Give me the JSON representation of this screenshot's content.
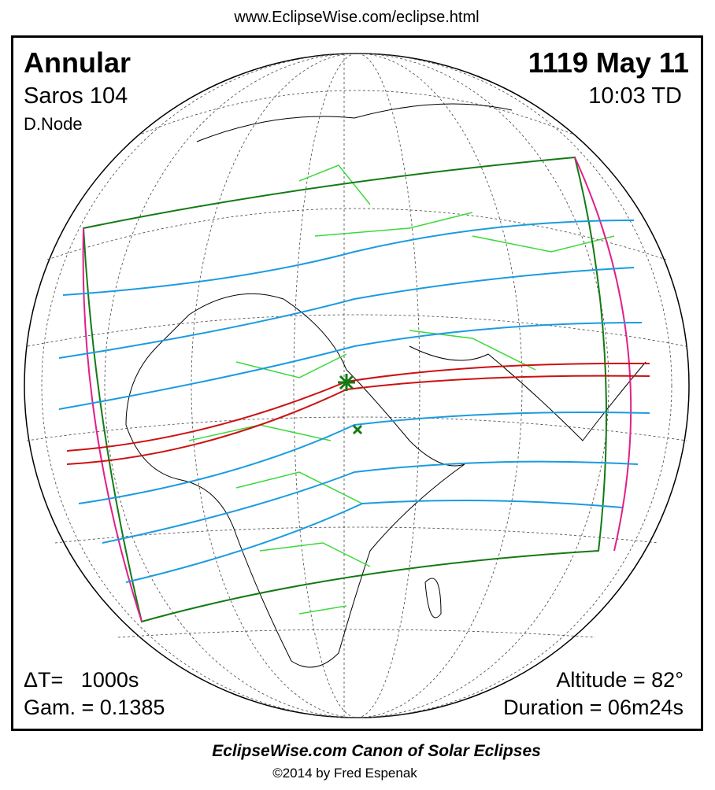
{
  "header": {
    "url": "www.EclipseWise.com/eclipse.html"
  },
  "panel": {
    "eclipse_type": "Annular",
    "saros": "Saros 104",
    "node": "D.Node",
    "date": "1119 May 11",
    "time": "10:03 TD",
    "delta_t": "ΔT=   1000s",
    "gamma": "Gam. = 0.1385",
    "altitude": "Altitude = 82°",
    "duration": "Duration = 06m24s"
  },
  "footer": {
    "title": "EclipseWise.com Canon of Solar Eclipses",
    "credit": "©2014 by Fred Espenak"
  }
}
